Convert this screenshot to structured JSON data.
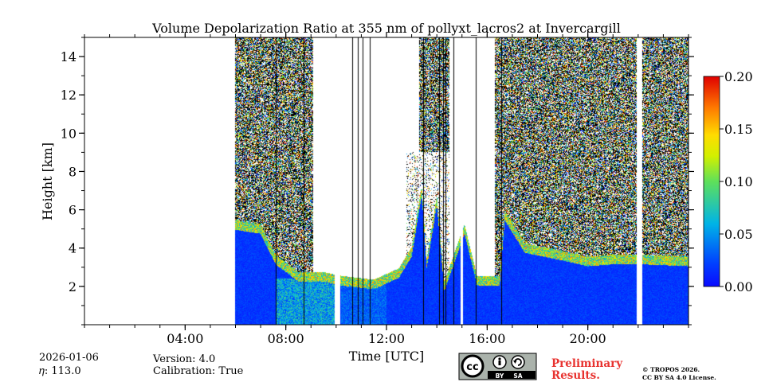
{
  "chart_data": {
    "type": "heatmap",
    "title": "Volume Depolarization Ratio at 355 nm of pollyxt_lacros2 at Invercargill",
    "xlabel": "Time [UTC]",
    "ylabel": "Height [km]",
    "x_unit": "hours UTC",
    "xlim": [
      0,
      24
    ],
    "ylim": [
      0,
      15
    ],
    "xticks": [
      {
        "value": 4,
        "label": "04:00"
      },
      {
        "value": 8,
        "label": "08:00"
      },
      {
        "value": 12,
        "label": "12:00"
      },
      {
        "value": 16,
        "label": "16:00"
      },
      {
        "value": 20,
        "label": "20:00"
      }
    ],
    "yticks": [
      {
        "value": 2,
        "label": "2"
      },
      {
        "value": 4,
        "label": "4"
      },
      {
        "value": 6,
        "label": "6"
      },
      {
        "value": 8,
        "label": "8"
      },
      {
        "value": 10,
        "label": "10"
      },
      {
        "value": 12,
        "label": "12"
      },
      {
        "value": 14,
        "label": "14"
      }
    ],
    "colorbar": {
      "min": 0.0,
      "max": 0.2,
      "colormap": "jet",
      "ticks": [
        {
          "value": 0.0,
          "label": "0.00"
        },
        {
          "value": 0.05,
          "label": "0.05"
        },
        {
          "value": 0.1,
          "label": "0.10"
        },
        {
          "value": 0.15,
          "label": "0.15"
        },
        {
          "value": 0.2,
          "label": "0.20"
        }
      ]
    },
    "data_start_hour": 6.0,
    "data_end_hour": 24.0,
    "data_gaps_hours": [
      [
        9.95,
        10.15
      ],
      [
        14.95,
        15.05
      ],
      [
        21.95,
        22.15
      ]
    ],
    "mask_lines_hours": [
      7.6,
      8.7,
      10.65,
      10.85,
      11.05,
      11.35,
      13.45,
      14.1,
      14.25,
      14.35,
      14.65,
      15.55,
      16.55
    ],
    "boundary_layer_top_km": [
      [
        6.0,
        5.2
      ],
      [
        7.0,
        5.0
      ],
      [
        7.6,
        3.4
      ],
      [
        8.5,
        2.5
      ],
      [
        9.5,
        2.5
      ],
      [
        10.2,
        2.3
      ],
      [
        11.5,
        2.1
      ],
      [
        12.5,
        2.7
      ],
      [
        13.0,
        3.8
      ],
      [
        13.4,
        7.0
      ],
      [
        13.6,
        3.2
      ],
      [
        14.0,
        6.5
      ],
      [
        14.3,
        2.0
      ],
      [
        15.1,
        5.0
      ],
      [
        15.6,
        2.3
      ],
      [
        16.5,
        2.3
      ],
      [
        16.7,
        5.7
      ],
      [
        17.5,
        4.0
      ],
      [
        19.0,
        3.6
      ],
      [
        20.0,
        3.3
      ],
      [
        21.0,
        3.4
      ],
      [
        22.2,
        3.4
      ],
      [
        24.0,
        3.3
      ]
    ]
  },
  "footer": {
    "date": "2026-01-06",
    "eta": "𝜂: 113.0",
    "version": "Version: 4.0",
    "calibration": "Calibration: True",
    "preliminary_line1": "Preliminary",
    "preliminary_line2": "Results.",
    "copyright_line1": "© TROPOS 2026.",
    "copyright_line2": "CC BY SA 4.0 License.",
    "license_badge_label_by": "BY",
    "license_badge_label_sa": "SA",
    "license_badge_label_cc": "cc"
  },
  "colors": {
    "preliminary": "#e8322f",
    "badge_bg": "#aab2ab",
    "badge_dark": "#000000"
  }
}
